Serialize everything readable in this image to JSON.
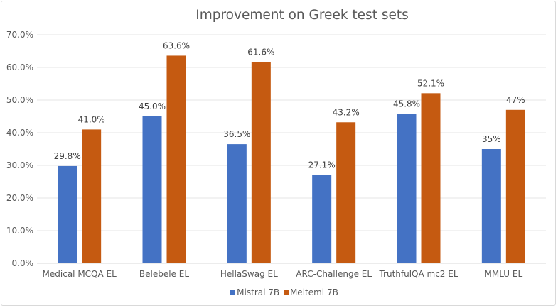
{
  "chart_data": {
    "type": "bar",
    "title": "Improvement on Greek test sets",
    "categories": [
      "Medical MCQA EL",
      "Belebele EL",
      "HellaSwag EL",
      "ARC-Challenge EL",
      "TruthfulQA mc2 EL",
      "MMLU EL"
    ],
    "series": [
      {
        "name": "Mistral 7B",
        "color": "#4472c4",
        "values": [
          29.8,
          45.0,
          36.5,
          27.1,
          45.8,
          35
        ],
        "labels": [
          "29.8%",
          "45.0%",
          "36.5%",
          "27.1%",
          "45.8%",
          "35%"
        ]
      },
      {
        "name": "Meltemi 7B",
        "color": "#c55a11",
        "values": [
          41.0,
          63.6,
          61.6,
          43.2,
          52.1,
          47
        ],
        "labels": [
          "41.0%",
          "63.6%",
          "61.6%",
          "43.2%",
          "52.1%",
          "47%"
        ]
      }
    ],
    "yticks": [
      "0.0%",
      "10.0%",
      "20.0%",
      "30.0%",
      "40.0%",
      "50.0%",
      "60.0%",
      "70.0%"
    ],
    "ylim": [
      0,
      70
    ],
    "grid": true,
    "legend": "bottom"
  }
}
